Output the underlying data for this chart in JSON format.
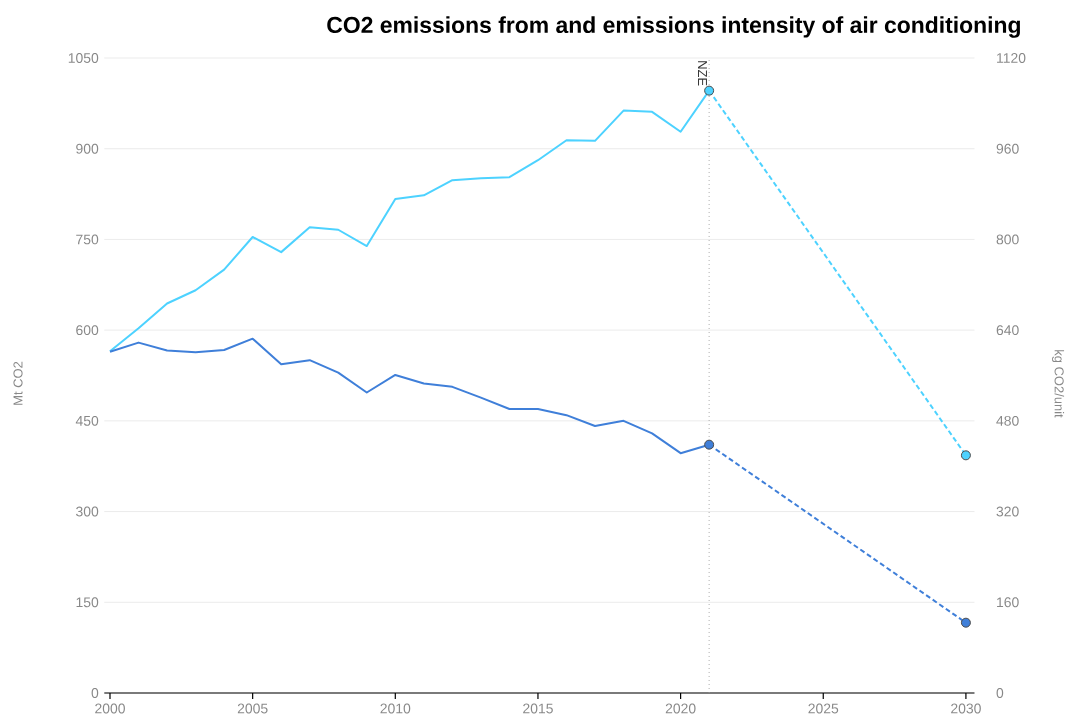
{
  "chart_data": {
    "type": "line",
    "title": "CO2 emissions from and emissions intensity of air conditioning",
    "ylabel": "Mt CO2",
    "y2label": "kg CO2/unit",
    "xlim": [
      1999.8,
      2030.3
    ],
    "xticks": [
      2000,
      2005,
      2010,
      2015,
      2020,
      2025,
      2030
    ],
    "ylim": [
      0,
      1050
    ],
    "yticks": [
      0,
      150,
      300,
      450,
      600,
      750,
      900,
      1050
    ],
    "y2lim": [
      0,
      1120
    ],
    "y2ticks": [
      0,
      160,
      320,
      480,
      640,
      800,
      960,
      1120
    ],
    "grid": "y",
    "series": [
      {
        "color": "#4dd2ff",
        "line_style": "solid",
        "marker": "none",
        "x": [
          2000,
          2001,
          2002,
          2003,
          2004,
          2005,
          2006,
          2007,
          2008,
          2009,
          2010,
          2011,
          2012,
          2013,
          2014,
          2015,
          2016,
          2017,
          2018,
          2019,
          2020,
          2021
        ],
        "values": [
          565,
          603,
          644,
          666,
          700,
          754,
          729,
          770,
          766,
          739,
          817,
          823,
          848,
          851,
          853,
          881,
          914,
          913,
          963,
          961,
          928,
          996
        ]
      },
      {
        "axis": "y2",
        "color": "#3f7fd9",
        "line_style": "solid",
        "marker": "none",
        "x": [
          2000,
          2001,
          2002,
          2003,
          2004,
          2005,
          2006,
          2007,
          2008,
          2009,
          2010,
          2011,
          2012,
          2013,
          2014,
          2015,
          2016,
          2017,
          2018,
          2019,
          2020,
          2021
        ],
        "values": [
          602,
          618,
          604,
          601,
          605,
          625,
          580,
          587,
          565,
          530,
          561,
          546,
          540,
          521,
          501,
          501,
          490,
          471,
          480,
          458,
          423,
          438
        ]
      },
      {
        "color": "#4dd2ff",
        "line_style": "dashed",
        "marker": "circle",
        "x": [
          2021,
          2030
        ],
        "values": [
          996,
          393
        ]
      },
      {
        "axis": "y2",
        "color": "#3f7fd9",
        "line_style": "dashed",
        "marker": "circle",
        "x": [
          2021,
          2030
        ],
        "values": [
          438,
          124
        ]
      }
    ],
    "ref_lines": [
      {
        "axis": "x",
        "value": 2021,
        "label": "NZE",
        "color": "#999999",
        "line_style": "dotted"
      }
    ]
  }
}
